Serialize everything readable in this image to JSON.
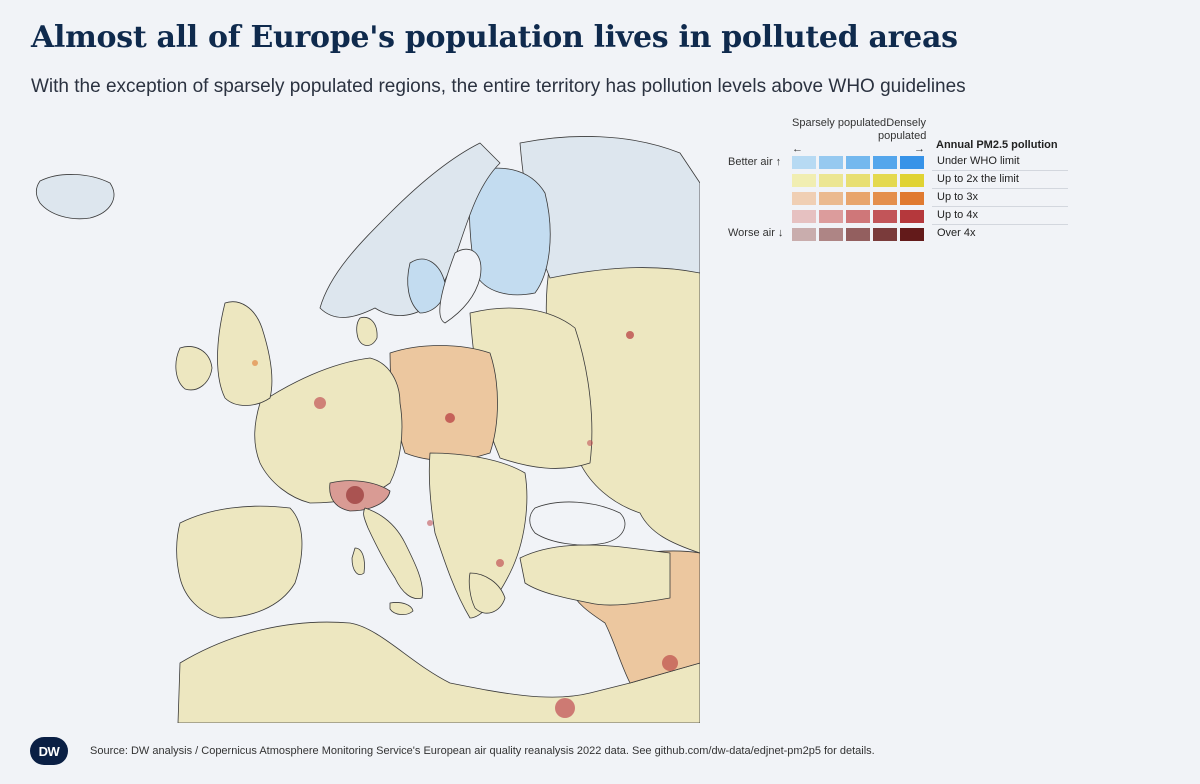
{
  "header": {
    "title": "Almost all of Europe's population lives in polluted areas",
    "subtitle": "With the exception of sparsely populated regions, the entire territory has pollution levels above WHO guidelines"
  },
  "legend": {
    "title": "Annual PM2.5 pollution",
    "sparse_label": "Sparsely populated",
    "dense_label": "Densely populated",
    "left_arrow": "←",
    "right_arrow": "→",
    "better_label": "Better air ↑",
    "worse_label": "Worse air ↓",
    "rows": [
      {
        "label": "Under WHO limit",
        "colors": [
          "#b7daf3",
          "#96c9f0",
          "#74b8ee",
          "#54a6ec",
          "#3793e8"
        ]
      },
      {
        "label": "Up to 2x the limit",
        "colors": [
          "#f1eeb2",
          "#ece692",
          "#e8df72",
          "#e4d94f",
          "#e0d333"
        ]
      },
      {
        "label": "Up to 3x",
        "colors": [
          "#f0cfb4",
          "#ebba8f",
          "#e8a56c",
          "#e48f4c",
          "#e07a30"
        ]
      },
      {
        "label": "Up to 4x",
        "colors": [
          "#e6c1c1",
          "#dc9c9c",
          "#cf7779",
          "#c25559",
          "#b5383c"
        ]
      },
      {
        "label": "Over 4x",
        "colors": [
          "#c9adad",
          "#ae8585",
          "#935f5f",
          "#7a3b3b",
          "#631a1a"
        ]
      }
    ]
  },
  "footer": {
    "logo_text": "DW",
    "source": "Source: DW analysis / Copernicus Atmosphere Monitoring Service's European air quality reanalysis 2022 data. See github.com/dw-data/edjnet-pm2p5 for details."
  },
  "map_colors": {
    "water": "#f1f3f7",
    "clean": "#dde6ee",
    "light_blue": "#c3dcf0",
    "yellow": "#ede7c0",
    "orange": "#ecc79f",
    "red": "#d99b94",
    "dark": "#b05050",
    "border": "#3a3a3a"
  }
}
